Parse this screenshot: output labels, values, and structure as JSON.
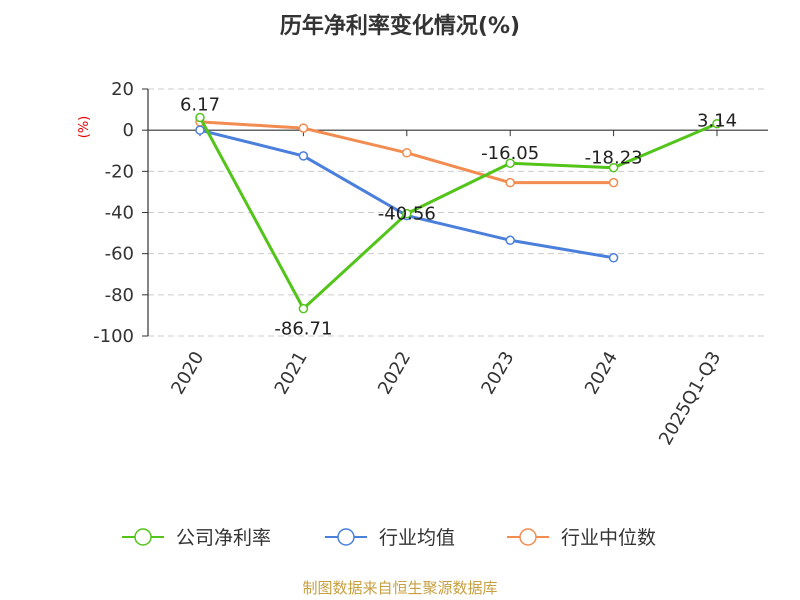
{
  "chart_data": {
    "type": "line",
    "title": "历年净利率变化情况(%)",
    "ylabel": "(%)",
    "xlabel": "",
    "categories": [
      "2020",
      "2021",
      "2022",
      "2023",
      "2024",
      "2025Q1-Q3"
    ],
    "ylim": [
      -100,
      20
    ],
    "yticks": [
      20,
      0,
      -20,
      -40,
      -60,
      -80,
      -100
    ],
    "grid": true,
    "legend_position": "bottom",
    "series": [
      {
        "name": "公司净利率",
        "color": "#52c41a",
        "values": [
          6.17,
          -86.71,
          -40.56,
          -16.05,
          -18.23,
          3.14
        ],
        "labels": [
          "6.17",
          "-86.71",
          "-40.56",
          "-16.05",
          "-18.23",
          "3.14"
        ]
      },
      {
        "name": "行业均值",
        "color": "#4a7fdc",
        "values": [
          0,
          -12.5,
          -41.5,
          -53.5,
          -62.0,
          null
        ]
      },
      {
        "name": "行业中位数",
        "color": "#f28c50",
        "values": [
          4.0,
          1.0,
          -11.0,
          -25.5,
          -25.5,
          null
        ]
      }
    ]
  },
  "source": "制图数据来自恒生聚源数据库"
}
